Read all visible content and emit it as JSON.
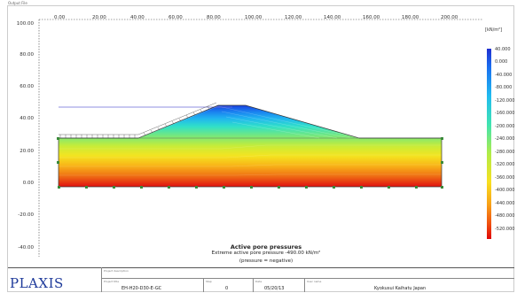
{
  "header": {
    "corner_label": "Output File"
  },
  "x_axis": {
    "ticks": [
      "0.00",
      "20.00",
      "40.00",
      "60.00",
      "80.00",
      "100.00",
      "120.00",
      "140.00",
      "160.00",
      "180.00",
      "200.00"
    ]
  },
  "y_axis": {
    "ticks": [
      "100.00",
      "80.00",
      "60.00",
      "40.00",
      "20.00",
      "0.00",
      "-20.00",
      "-40.00"
    ]
  },
  "legend": {
    "unit": "[kN/m²]",
    "labels": [
      "40.000",
      "0.000",
      "-40.000",
      "-80.000",
      "-120.000",
      "-160.000",
      "-200.000",
      "-240.000",
      "-280.000",
      "-320.000",
      "-360.000",
      "-400.000",
      "-440.000",
      "-480.000",
      "-520.000"
    ],
    "colors": [
      "#2030d0",
      "#1a56e8",
      "#1a82f0",
      "#20aaf0",
      "#20cce8",
      "#30e0c0",
      "#60e890",
      "#a0ec50",
      "#d8ec30",
      "#f8e020",
      "#f8b818",
      "#f88a14",
      "#f05a10",
      "#e83010",
      "#e00808"
    ]
  },
  "caption": {
    "title": "Active pore pressures",
    "extreme": "Extreme active pore pressure -490.00 kN/m²",
    "note": "(pressure = negative)"
  },
  "title_block": {
    "logo": "PLAXIS",
    "project_label": "Project description",
    "file_label": "Project title",
    "file_value": "EH-H20-D30-E-GC",
    "step_label": "Step",
    "step_value": "0",
    "date_label": "Date",
    "date_value": "05/20/13",
    "user_label": "User name",
    "user_value": "Kyokusui Kaihatu  Japan"
  }
}
